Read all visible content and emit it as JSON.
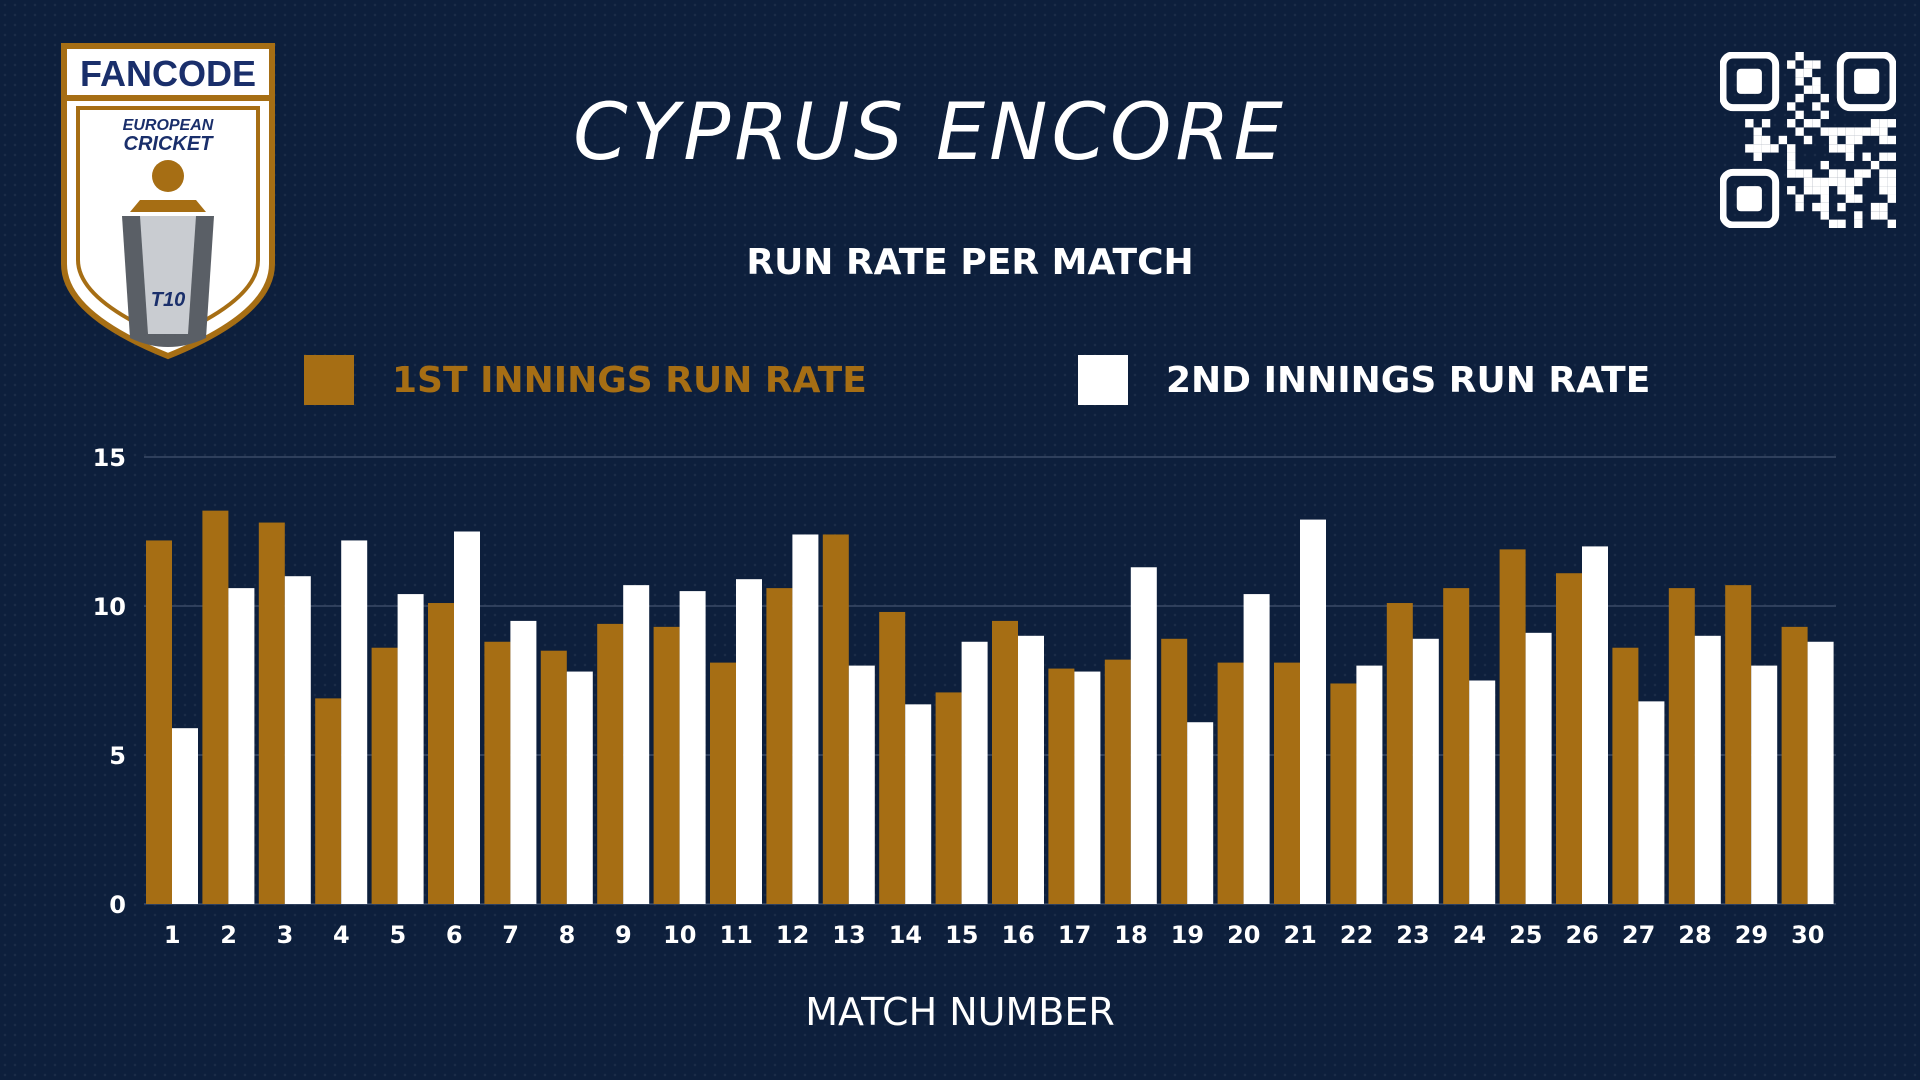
{
  "header": {
    "title": "CYPRUS ENCORE",
    "subtitle": "RUN RATE PER MATCH"
  },
  "logo": {
    "brand": "FANCODE",
    "line1": "EUROPEAN",
    "line2": "CRICKET",
    "badge": "T10"
  },
  "colors": {
    "background": "#0d1f3c",
    "first_innings": "#a66e14",
    "second_innings": "#ffffff",
    "grid": "#3a4a66"
  },
  "chart_data": {
    "type": "bar",
    "xlabel": "MATCH NUMBER",
    "ylabel": "",
    "ylim": [
      0,
      15
    ],
    "yticks": [
      "0",
      "5",
      "10",
      "15"
    ],
    "grid": true,
    "legend_position": "top",
    "categories": [
      "1",
      "2",
      "3",
      "4",
      "5",
      "6",
      "7",
      "8",
      "9",
      "10",
      "11",
      "12",
      "13",
      "14",
      "15",
      "16",
      "17",
      "18",
      "19",
      "20",
      "21",
      "22",
      "23",
      "24",
      "25",
      "26",
      "27",
      "28",
      "29",
      "30"
    ],
    "series": [
      {
        "name": "1ST INNINGS RUN RATE",
        "values": [
          12.2,
          13.2,
          12.8,
          6.9,
          8.6,
          10.1,
          8.8,
          8.5,
          9.4,
          9.3,
          8.1,
          10.6,
          12.4,
          9.8,
          7.1,
          9.5,
          7.9,
          8.2,
          8.9,
          8.1,
          8.1,
          7.4,
          10.1,
          10.6,
          11.9,
          11.1,
          8.6,
          10.6,
          10.7,
          9.3
        ]
      },
      {
        "name": "2ND INNINGS RUN RATE",
        "values": [
          5.9,
          10.6,
          11.0,
          12.2,
          10.4,
          12.5,
          9.5,
          7.8,
          10.7,
          10.5,
          10.9,
          12.4,
          8.0,
          6.7,
          8.8,
          9.0,
          7.8,
          11.3,
          6.1,
          10.4,
          12.9,
          8.0,
          8.9,
          7.5,
          9.1,
          12.0,
          6.8,
          9.0,
          8.0,
          8.8
        ]
      }
    ]
  }
}
